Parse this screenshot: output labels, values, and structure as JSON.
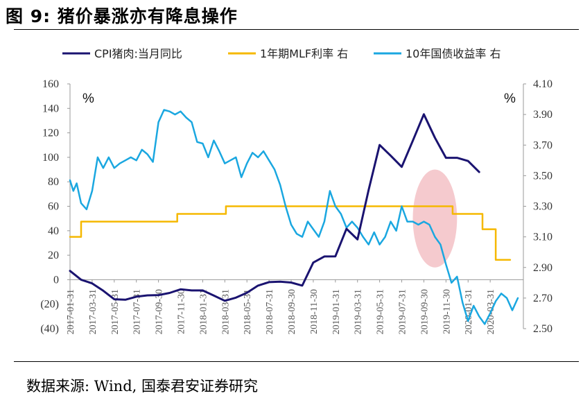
{
  "header": {
    "title": "图 9: 猪价暴涨亦有降息操作"
  },
  "footer": {
    "source": "数据来源: Wind, 国泰君安证券研究"
  },
  "colors": {
    "cpi_pork": "#1a1370",
    "mlf": "#f5b800",
    "bond10y": "#1aa7e0",
    "highlight": "#f2b8be",
    "negative_label": "#ff0000"
  },
  "chart_data": {
    "type": "line",
    "left_axis": {
      "ticks": [
        {
          "value": 160,
          "label": "160"
        },
        {
          "value": 140,
          "label": "140"
        },
        {
          "value": 120,
          "label": "120"
        },
        {
          "value": 100,
          "label": "100"
        },
        {
          "value": 80,
          "label": "80"
        },
        {
          "value": 60,
          "label": "60"
        },
        {
          "value": 40,
          "label": "40"
        },
        {
          "value": 20,
          "label": "20"
        },
        {
          "value": 0,
          "label": "0"
        },
        {
          "value": -20,
          "label": "(20)"
        },
        {
          "value": -40,
          "label": "(40)"
        }
      ],
      "ylim": [
        -40,
        160
      ],
      "unit": "%"
    },
    "right_axis": {
      "ticks": [
        "4.10",
        "3.90",
        "3.70",
        "3.50",
        "3.30",
        "3.10",
        "2.90",
        "2.70",
        "2.50"
      ],
      "ylim": [
        2.5,
        4.1
      ],
      "unit": "%"
    },
    "x_ticks": [
      "2017-01-31",
      "2017-03-31",
      "2017-05-31",
      "2017-07-31",
      "2017-09-30",
      "2017-11-30",
      "2018-01-31",
      "2018-03-31",
      "2018-05-31",
      "2018-07-31",
      "2018-09-30",
      "2018-11-30",
      "2019-01-31",
      "2019-03-31",
      "2019-05-31",
      "2019-07-31",
      "2019-09-30",
      "2019-11-30",
      "2020-01-31",
      "2020-03-31"
    ],
    "x_range_months": [
      0,
      41
    ],
    "legend": [
      {
        "name": "CPI猪肉:当月同比",
        "key": "cpi_pork"
      },
      {
        "name": "1年期MLF利率 右",
        "key": "mlf"
      },
      {
        "name": "10年国债收益率 右",
        "key": "bond10y"
      }
    ],
    "series": [
      {
        "name": "CPI猪肉:当月同比",
        "axis": "left",
        "x": [
          0,
          1,
          2,
          3,
          4,
          5,
          6,
          7,
          8,
          9,
          10,
          11,
          12,
          13,
          14,
          15,
          16,
          17,
          18,
          19,
          20,
          21,
          22,
          23,
          24,
          25,
          26,
          27,
          28,
          29,
          30,
          31,
          32,
          33,
          34,
          35,
          36,
          37
        ],
        "values": [
          7.2,
          0.0,
          -3.0,
          -9.0,
          -16.0,
          -16.4,
          -13.9,
          -12.8,
          -12.6,
          -10.8,
          -7.9,
          -8.8,
          -8.8,
          -12.9,
          -17.2,
          -14.7,
          -10.7,
          -4.8,
          -2.0,
          -1.6,
          -2.3,
          -4.8,
          14.0,
          19.0,
          19.1,
          41.6,
          32.9,
          73.2,
          110.1,
          101.3,
          92.2,
          113.6,
          135.2,
          116.0,
          99.6,
          99.6,
          97.0,
          88.0
        ]
      },
      {
        "name": "1年期MLF利率 右",
        "axis": "right",
        "x": [
          0,
          1,
          1,
          9.7,
          9.7,
          14.1,
          14.1,
          34.6,
          34.6,
          37.3,
          37.3,
          38.5,
          38.5,
          39.8
        ],
        "values": [
          3.1,
          3.1,
          3.2,
          3.2,
          3.25,
          3.25,
          3.3,
          3.3,
          3.25,
          3.25,
          3.15,
          3.15,
          2.95,
          2.95
        ]
      },
      {
        "name": "10年国债收益率 右",
        "axis": "right",
        "x": [
          0,
          0.3,
          0.6,
          1,
          1.5,
          2,
          2.5,
          3,
          3.5,
          4,
          4.5,
          5,
          5.5,
          6,
          6.5,
          7,
          7.5,
          8,
          8.5,
          9,
          9.5,
          10,
          10.5,
          11,
          11.5,
          12,
          12.5,
          13,
          13.5,
          14,
          14.5,
          15,
          15.5,
          16,
          16.5,
          17,
          17.5,
          18,
          18.5,
          19,
          19.5,
          20,
          20.5,
          21,
          21.5,
          22,
          22.5,
          23,
          23.5,
          24,
          24.5,
          25,
          25.5,
          26,
          26.5,
          27,
          27.5,
          28,
          28.5,
          29,
          29.5,
          30,
          30.5,
          31,
          31.5,
          32,
          32.5,
          33,
          33.5,
          34,
          34.5,
          35,
          35.5,
          36,
          36.5,
          37,
          37.5,
          38,
          38.5,
          39,
          39.5,
          40,
          40.5
        ],
        "values": [
          3.47,
          3.4,
          3.45,
          3.32,
          3.28,
          3.4,
          3.62,
          3.55,
          3.62,
          3.55,
          3.58,
          3.6,
          3.62,
          3.6,
          3.67,
          3.64,
          3.59,
          3.85,
          3.93,
          3.92,
          3.9,
          3.92,
          3.88,
          3.85,
          3.72,
          3.71,
          3.62,
          3.73,
          3.66,
          3.58,
          3.6,
          3.62,
          3.49,
          3.58,
          3.65,
          3.62,
          3.66,
          3.6,
          3.54,
          3.44,
          3.3,
          3.18,
          3.12,
          3.1,
          3.2,
          3.15,
          3.1,
          3.2,
          3.4,
          3.3,
          3.25,
          3.16,
          3.2,
          3.16,
          3.1,
          3.05,
          3.13,
          3.05,
          3.1,
          3.2,
          3.14,
          3.3,
          3.2,
          3.2,
          3.18,
          3.2,
          3.18,
          3.1,
          3.05,
          2.92,
          2.8,
          2.84,
          2.67,
          2.55,
          2.65,
          2.58,
          2.53,
          2.6,
          2.68,
          2.73,
          2.7,
          2.62,
          2.7
        ]
      }
    ],
    "highlight_ellipse": {
      "x_center": 33.0,
      "y_center_left": 50,
      "x_radius": 2.0,
      "y_radius_left": 40
    }
  }
}
